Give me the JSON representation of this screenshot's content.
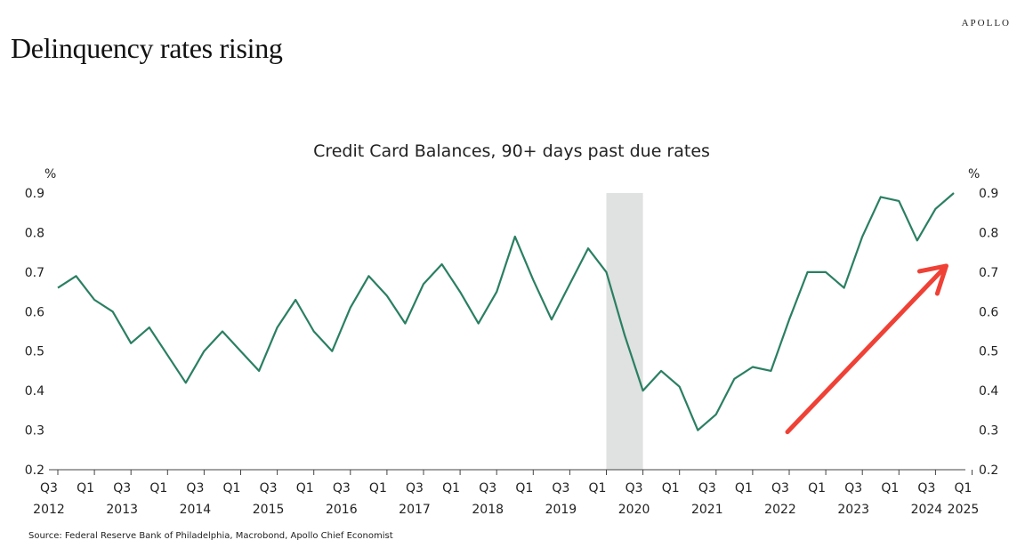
{
  "brand": "APOLLO",
  "headline": "Delinquency rates rising",
  "source": "Source: Federal Reserve Bank of Philadelphia, Macrobond, Apollo Chief Economist",
  "colors": {
    "line": "#2a7f62",
    "recession": "#dfe2e0",
    "arrow": "#ef4136",
    "axis": "#444444"
  },
  "chart_data": {
    "type": "line",
    "title": "Credit Card Balances, 90+ days past due rates",
    "ylabel_left": "%",
    "ylabel_right": "%",
    "ylim": [
      0.2,
      0.9
    ],
    "yticks": [
      "0.2",
      "0.3",
      "0.4",
      "0.5",
      "0.6",
      "0.7",
      "0.8",
      "0.9"
    ],
    "xticks": [
      {
        "q": "Q3",
        "year": "2012"
      },
      {
        "q": "Q1",
        "year": ""
      },
      {
        "q": "Q3",
        "year": "2013"
      },
      {
        "q": "Q1",
        "year": ""
      },
      {
        "q": "Q3",
        "year": "2014"
      },
      {
        "q": "Q1",
        "year": ""
      },
      {
        "q": "Q3",
        "year": "2015"
      },
      {
        "q": "Q1",
        "year": ""
      },
      {
        "q": "Q3",
        "year": "2016"
      },
      {
        "q": "Q1",
        "year": ""
      },
      {
        "q": "Q3",
        "year": "2017"
      },
      {
        "q": "Q1",
        "year": ""
      },
      {
        "q": "Q3",
        "year": "2018"
      },
      {
        "q": "Q1",
        "year": ""
      },
      {
        "q": "Q3",
        "year": "2019"
      },
      {
        "q": "Q1",
        "year": ""
      },
      {
        "q": "Q3",
        "year": "2020"
      },
      {
        "q": "Q1",
        "year": ""
      },
      {
        "q": "Q3",
        "year": "2021"
      },
      {
        "q": "Q1",
        "year": ""
      },
      {
        "q": "Q3",
        "year": "2022"
      },
      {
        "q": "Q1",
        "year": ""
      },
      {
        "q": "Q3",
        "year": "2023"
      },
      {
        "q": "Q1",
        "year": ""
      },
      {
        "q": "Q3",
        "year": "2024"
      },
      {
        "q": "Q1",
        "year": "2025"
      }
    ],
    "recession": {
      "start": "2020 Q1",
      "end": "2020 Q3"
    },
    "series": [
      {
        "name": "Credit Card Balances, 90+ days past due rate",
        "x": [
          "2012 Q3",
          "2012 Q4",
          "2013 Q1",
          "2013 Q2",
          "2013 Q3",
          "2013 Q4",
          "2014 Q1",
          "2014 Q2",
          "2014 Q3",
          "2014 Q4",
          "2015 Q1",
          "2015 Q2",
          "2015 Q3",
          "2015 Q4",
          "2016 Q1",
          "2016 Q2",
          "2016 Q3",
          "2016 Q4",
          "2017 Q1",
          "2017 Q2",
          "2017 Q3",
          "2017 Q4",
          "2018 Q1",
          "2018 Q2",
          "2018 Q3",
          "2018 Q4",
          "2019 Q1",
          "2019 Q2",
          "2019 Q3",
          "2019 Q4",
          "2020 Q1",
          "2020 Q2",
          "2020 Q3",
          "2020 Q4",
          "2021 Q1",
          "2021 Q2",
          "2021 Q3",
          "2021 Q4",
          "2022 Q1",
          "2022 Q2",
          "2022 Q3",
          "2022 Q4",
          "2023 Q1",
          "2023 Q2",
          "2023 Q3",
          "2023 Q4",
          "2024 Q1",
          "2024 Q2",
          "2024 Q3",
          "2024 Q4"
        ],
        "values": [
          0.66,
          0.69,
          0.63,
          0.6,
          0.52,
          0.56,
          0.49,
          0.42,
          0.5,
          0.55,
          0.5,
          0.45,
          0.56,
          0.63,
          0.55,
          0.5,
          0.61,
          0.69,
          0.64,
          0.57,
          0.67,
          0.72,
          0.65,
          0.57,
          0.65,
          0.79,
          0.68,
          0.58,
          0.67,
          0.76,
          0.7,
          0.54,
          0.4,
          0.45,
          0.41,
          0.3,
          0.34,
          0.43,
          0.46,
          0.45,
          0.58,
          0.7,
          0.7,
          0.66,
          0.79,
          0.89,
          0.88,
          0.78,
          0.86,
          0.9
        ]
      }
    ],
    "annotation": {
      "type": "arrow",
      "from": {
        "x": "2022 Q3",
        "y": 0.3
      },
      "to": {
        "x": "2024 Q3",
        "y": 0.72
      }
    }
  }
}
